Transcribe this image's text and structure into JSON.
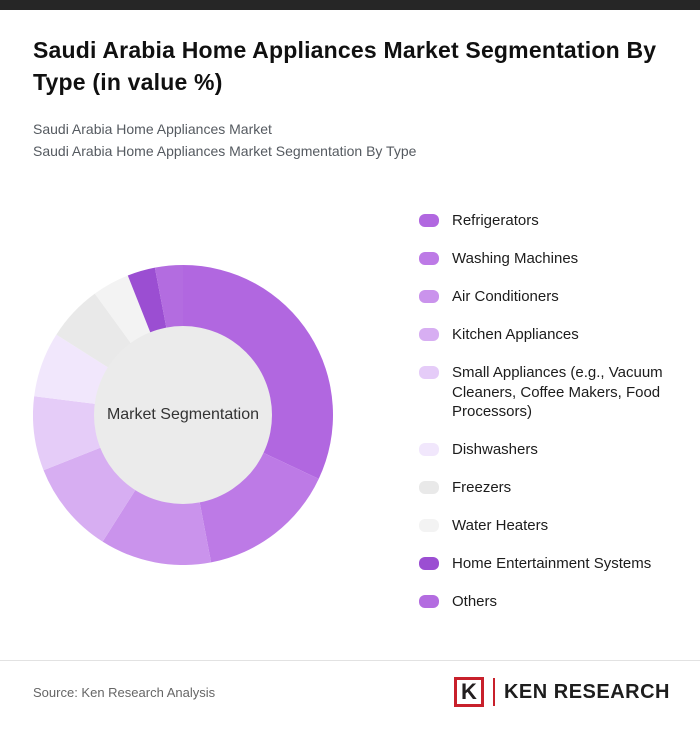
{
  "page": {
    "title": "Saudi Arabia Home Appliances Market Segmentation By Type (in value %)",
    "subtitle1": "Saudi Arabia Home Appliances Market",
    "subtitle2": "Saudi Arabia Home Appliances Market Segmentation By Type",
    "source": "Source: Ken Research Analysis",
    "logo": {
      "letter": "K",
      "text": "KEN RESEARCH"
    }
  },
  "chart_data": {
    "type": "pie",
    "donut": true,
    "title": "Saudi Arabia Home Appliances Market Segmentation By Type (in value %)",
    "center_label": "Market Segmentation",
    "legend_position": "right",
    "value_unit": "percent",
    "values_labeled_on_chart": false,
    "segments": [
      {
        "label": "Refrigerators",
        "value": 32,
        "color": "#b167e0"
      },
      {
        "label": "Washing Machines",
        "value": 15,
        "color": "#bd7ae6"
      },
      {
        "label": "Air Conditioners",
        "value": 12,
        "color": "#ca93ec"
      },
      {
        "label": "Kitchen Appliances",
        "value": 10,
        "color": "#d7aef2"
      },
      {
        "label": "Small Appliances (e.g., Vacuum Cleaners, Coffee Makers, Food Processors)",
        "value": 8,
        "color": "#e5ccf8"
      },
      {
        "label": "Dishwashers",
        "value": 7,
        "color": "#f1e7fc"
      },
      {
        "label": "Freezers",
        "value": 6,
        "color": "#e9e9e9"
      },
      {
        "label": "Water Heaters",
        "value": 4,
        "color": "#f3f3f3"
      },
      {
        "label": "Home Entertainment Systems",
        "value": 3,
        "color": "#9b4ed2"
      },
      {
        "label": "Others",
        "value": 3,
        "color": "#b36ce0"
      }
    ]
  }
}
